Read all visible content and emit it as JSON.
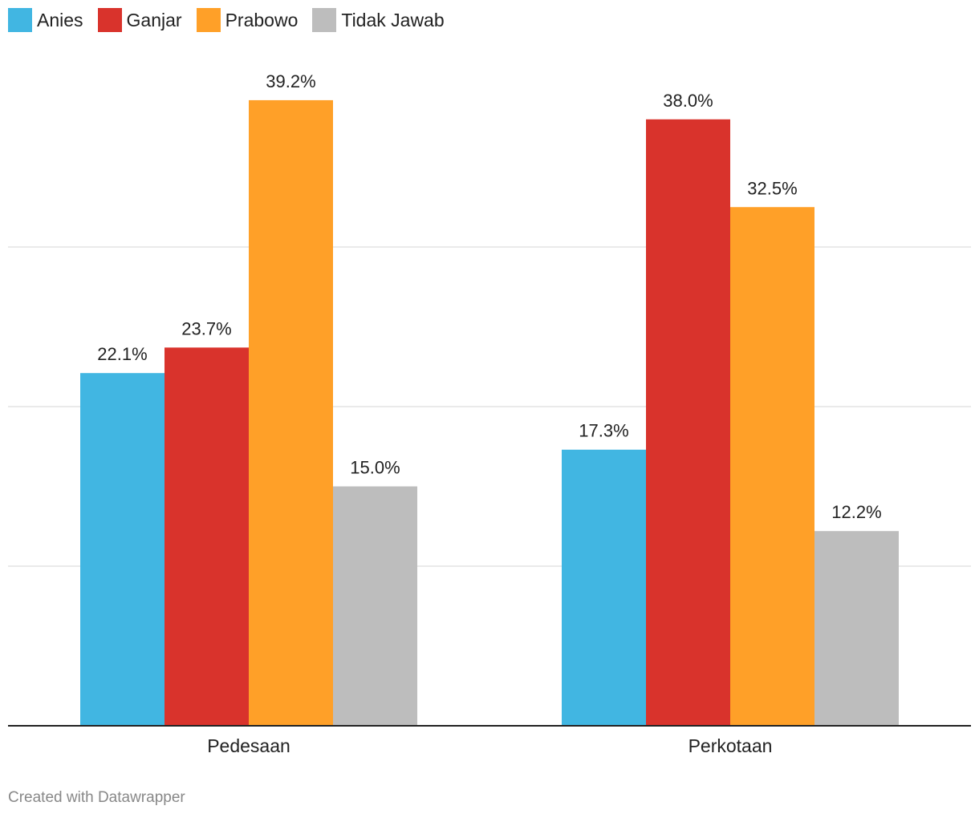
{
  "chart_data": {
    "type": "bar",
    "categories": [
      "Pedesaan",
      "Perkotaan"
    ],
    "series": [
      {
        "name": "Anies",
        "color": "#41b6e2",
        "values": [
          22.1,
          17.3
        ],
        "labels": [
          "22.1%",
          "17.3%"
        ]
      },
      {
        "name": "Ganjar",
        "color": "#d9332c",
        "values": [
          23.7,
          38.0
        ],
        "labels": [
          "23.7%",
          "38.0%"
        ]
      },
      {
        "name": "Prabowo",
        "color": "#ffa028",
        "values": [
          39.2,
          32.5
        ],
        "labels": [
          "39.2%",
          "32.5%"
        ]
      },
      {
        "name": "Tidak Jawab",
        "color": "#bdbdbd",
        "values": [
          15.0,
          12.2
        ],
        "labels": [
          "15.0%",
          "12.2%"
        ]
      }
    ],
    "ylim": [
      0,
      40
    ],
    "gridlines": [
      10,
      20,
      30
    ],
    "grid": true,
    "legend": "top-left"
  },
  "footer": {
    "credit": "Created with Datawrapper"
  }
}
